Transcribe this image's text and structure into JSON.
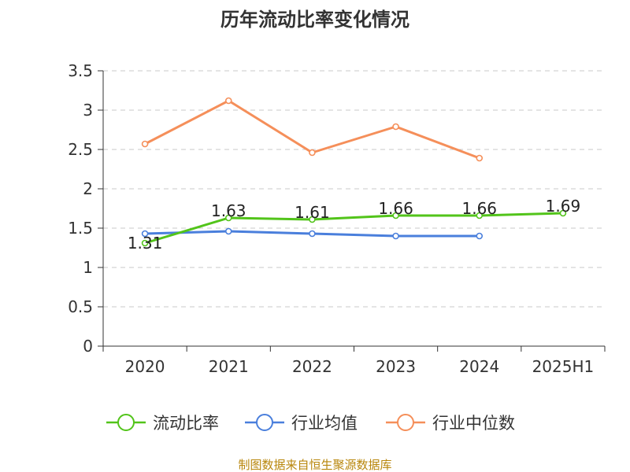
{
  "chart_data": {
    "type": "line",
    "title": "历年流动比率变化情况",
    "categories": [
      "2020",
      "2021",
      "2022",
      "2023",
      "2024",
      "2025H1"
    ],
    "ylim": [
      0,
      3.5
    ],
    "yticks": [
      "0",
      "0.5",
      "1",
      "1.5",
      "2",
      "2.5",
      "3",
      "3.5"
    ],
    "grid": true,
    "legend_position": "bottom",
    "series": [
      {
        "name": "流动比率",
        "color": "#52c41a",
        "values": [
          1.31,
          1.63,
          1.61,
          1.66,
          1.66,
          1.69
        ],
        "labels": [
          "1.31",
          "1.63",
          "1.61",
          "1.66",
          "1.66",
          "1.69"
        ]
      },
      {
        "name": "行业均值",
        "color": "#4a7fdc",
        "values": [
          1.43,
          1.46,
          1.43,
          1.4,
          1.4,
          null
        ]
      },
      {
        "name": "行业中位数",
        "color": "#f58f5a",
        "values": [
          2.57,
          3.12,
          2.46,
          2.79,
          2.39,
          null
        ]
      }
    ]
  },
  "footer": "制图数据来自恒生聚源数据库"
}
